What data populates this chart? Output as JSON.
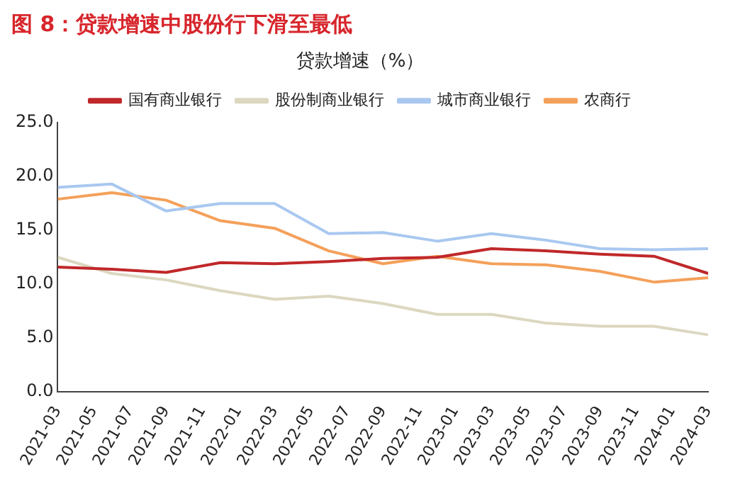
{
  "chart_data": {
    "type": "line",
    "title": "图 8：贷款增速中股份行下滑至最低",
    "subtitle": "贷款增速（%）",
    "x": [
      "2021-03",
      "2021-06",
      "2021-09",
      "2021-12",
      "2022-03",
      "2022-06",
      "2022-09",
      "2022-12",
      "2023-03",
      "2023-06",
      "2023-09",
      "2023-12",
      "2024-03"
    ],
    "series": [
      {
        "name": "国有商业银行",
        "color": "#c0282a",
        "values": [
          11.6,
          11.4,
          11.1,
          12.0,
          11.9,
          12.1,
          12.4,
          12.5,
          13.3,
          13.1,
          12.8,
          12.6,
          11.0
        ]
      },
      {
        "name": "股份制商业银行",
        "color": "#dcd7c0",
        "values": [
          12.5,
          11.0,
          10.4,
          9.4,
          8.6,
          8.9,
          8.2,
          7.2,
          7.2,
          6.4,
          6.1,
          6.1,
          5.3
        ]
      },
      {
        "name": "城市商业银行",
        "color": "#a9c8f0",
        "values": [
          19.0,
          19.3,
          16.8,
          17.5,
          17.5,
          14.7,
          14.8,
          14.0,
          14.7,
          14.1,
          13.3,
          13.2,
          13.3
        ]
      },
      {
        "name": "农商行",
        "color": "#f4a05a",
        "values": [
          17.9,
          18.5,
          17.8,
          15.9,
          15.2,
          13.1,
          11.9,
          12.6,
          11.9,
          11.8,
          11.2,
          10.2,
          10.6
        ]
      }
    ],
    "xlim": [
      "2021-03",
      "2024-03"
    ],
    "xticks": [
      "2021-03",
      "2021-05",
      "2021-07",
      "2021-09",
      "2021-11",
      "2022-01",
      "2022-03",
      "2022-05",
      "2022-07",
      "2022-09",
      "2022-11",
      "2023-01",
      "2023-03",
      "2023-05",
      "2023-07",
      "2023-09",
      "2023-11",
      "2024-01",
      "2024-03"
    ],
    "ylim": [
      0,
      25
    ],
    "yticks": [
      {
        "value": 0,
        "label": "0.0"
      },
      {
        "value": 5,
        "label": "5.0"
      },
      {
        "value": 10,
        "label": "10.0"
      },
      {
        "value": 15,
        "label": "15.0"
      },
      {
        "value": 20,
        "label": "20.0"
      },
      {
        "value": 25,
        "label": "25.0"
      }
    ],
    "grid": false,
    "legend": "top",
    "marker": "none",
    "line_style": "solid"
  }
}
